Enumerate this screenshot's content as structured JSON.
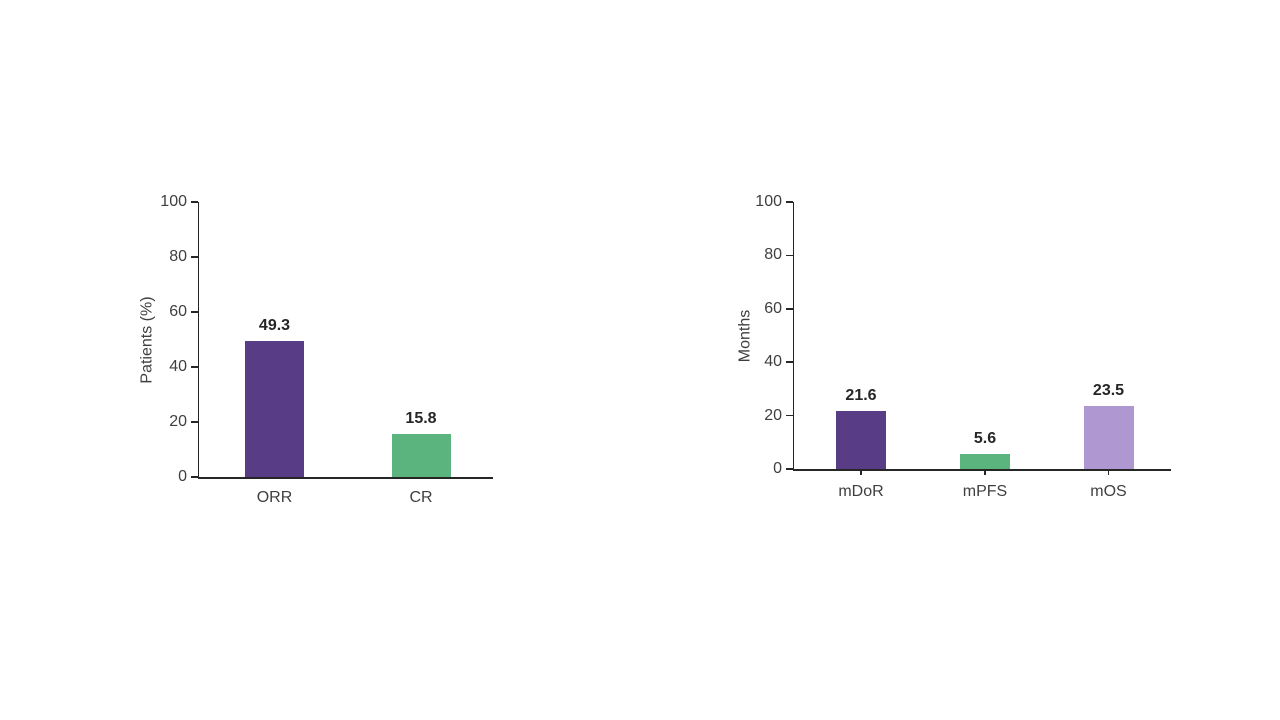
{
  "page": {
    "background_color": "#ffffff"
  },
  "style": {
    "axis_color": "#262626",
    "tick_label_color": "#3f3f3f",
    "value_label_color": "#262626",
    "category_label_color": "#3f3f3f"
  },
  "chart_data": [
    {
      "type": "bar",
      "title": "",
      "ylabel": "Patients (%)",
      "xlabel": "",
      "ylim": [
        0,
        100
      ],
      "yticks": [
        0,
        20,
        40,
        60,
        80,
        100
      ],
      "grid": false,
      "legend": "none",
      "categories": [
        "ORR",
        "CR"
      ],
      "values": [
        49.3,
        15.8
      ],
      "value_labels": [
        "49.3",
        "15.8"
      ],
      "bar_colors": [
        "#583D86",
        "#5BB47E"
      ]
    },
    {
      "type": "bar",
      "title": "",
      "ylabel": "Months",
      "xlabel": "",
      "ylim": [
        0,
        100
      ],
      "yticks": [
        0,
        20,
        40,
        60,
        80,
        100
      ],
      "grid": false,
      "legend": "none",
      "categories": [
        "mDoR",
        "mPFS",
        "mOS"
      ],
      "values": [
        21.6,
        5.6,
        23.5
      ],
      "value_labels": [
        "21.6",
        "5.6",
        "23.5"
      ],
      "bar_colors": [
        "#583D86",
        "#5BB47E",
        "#AF98D2"
      ]
    }
  ]
}
